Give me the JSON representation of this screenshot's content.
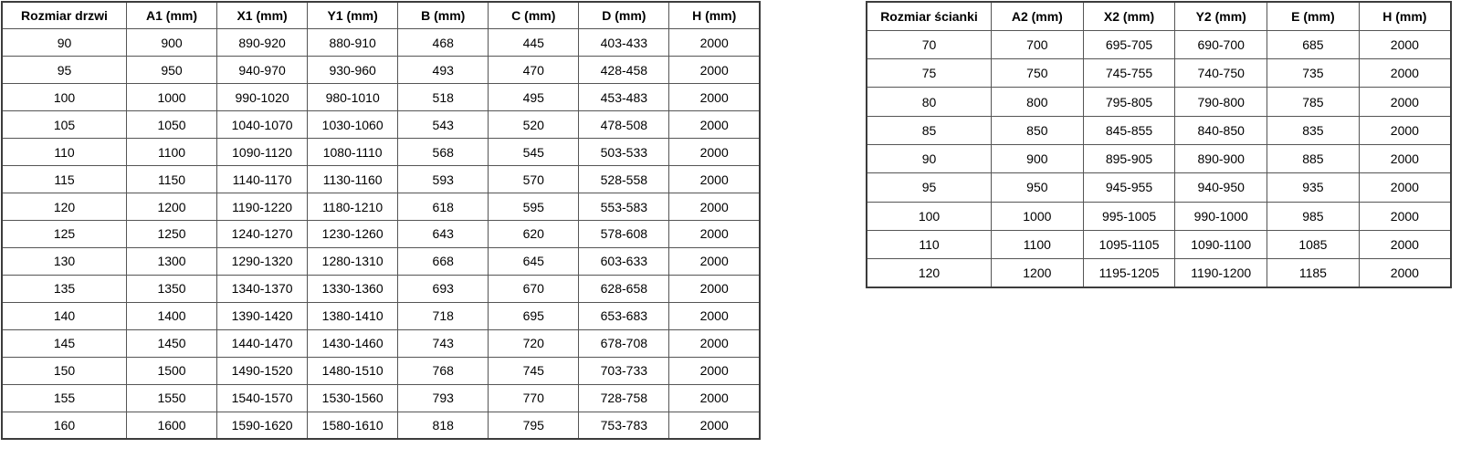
{
  "tables": {
    "doors": {
      "headers": [
        "Rozmiar drzwi",
        "A1 (mm)",
        "X1 (mm)",
        "Y1 (mm)",
        "B (mm)",
        "C (mm)",
        "D (mm)",
        "H (mm)"
      ],
      "rows": [
        [
          "90",
          "900",
          "890-920",
          "880-910",
          "468",
          "445",
          "403-433",
          "2000"
        ],
        [
          "95",
          "950",
          "940-970",
          "930-960",
          "493",
          "470",
          "428-458",
          "2000"
        ],
        [
          "100",
          "1000",
          "990-1020",
          "980-1010",
          "518",
          "495",
          "453-483",
          "2000"
        ],
        [
          "105",
          "1050",
          "1040-1070",
          "1030-1060",
          "543",
          "520",
          "478-508",
          "2000"
        ],
        [
          "110",
          "1100",
          "1090-1120",
          "1080-1110",
          "568",
          "545",
          "503-533",
          "2000"
        ],
        [
          "115",
          "1150",
          "1140-1170",
          "1130-1160",
          "593",
          "570",
          "528-558",
          "2000"
        ],
        [
          "120",
          "1200",
          "1190-1220",
          "1180-1210",
          "618",
          "595",
          "553-583",
          "2000"
        ],
        [
          "125",
          "1250",
          "1240-1270",
          "1230-1260",
          "643",
          "620",
          "578-608",
          "2000"
        ],
        [
          "130",
          "1300",
          "1290-1320",
          "1280-1310",
          "668",
          "645",
          "603-633",
          "2000"
        ],
        [
          "135",
          "1350",
          "1340-1370",
          "1330-1360",
          "693",
          "670",
          "628-658",
          "2000"
        ],
        [
          "140",
          "1400",
          "1390-1420",
          "1380-1410",
          "718",
          "695",
          "653-683",
          "2000"
        ],
        [
          "145",
          "1450",
          "1440-1470",
          "1430-1460",
          "743",
          "720",
          "678-708",
          "2000"
        ],
        [
          "150",
          "1500",
          "1490-1520",
          "1480-1510",
          "768",
          "745",
          "703-733",
          "2000"
        ],
        [
          "155",
          "1550",
          "1540-1570",
          "1530-1560",
          "793",
          "770",
          "728-758",
          "2000"
        ],
        [
          "160",
          "1600",
          "1590-1620",
          "1580-1610",
          "818",
          "795",
          "753-783",
          "2000"
        ]
      ]
    },
    "walls": {
      "headers": [
        "Rozmiar ścianki",
        "A2 (mm)",
        "X2 (mm)",
        "Y2 (mm)",
        "E (mm)",
        "H (mm)"
      ],
      "rows": [
        [
          "70",
          "700",
          "695-705",
          "690-700",
          "685",
          "2000"
        ],
        [
          "75",
          "750",
          "745-755",
          "740-750",
          "735",
          "2000"
        ],
        [
          "80",
          "800",
          "795-805",
          "790-800",
          "785",
          "2000"
        ],
        [
          "85",
          "850",
          "845-855",
          "840-850",
          "835",
          "2000"
        ],
        [
          "90",
          "900",
          "895-905",
          "890-900",
          "885",
          "2000"
        ],
        [
          "95",
          "950",
          "945-955",
          "940-950",
          "935",
          "2000"
        ],
        [
          "100",
          "1000",
          "995-1005",
          "990-1000",
          "985",
          "2000"
        ],
        [
          "110",
          "1100",
          "1095-1105",
          "1090-1100",
          "1085",
          "2000"
        ],
        [
          "120",
          "1200",
          "1195-1205",
          "1190-1200",
          "1185",
          "2000"
        ]
      ]
    },
    "colors": {
      "inner_border": "#555555",
      "outer_border": "#3c3c3c",
      "text": "#000000",
      "background": "#ffffff"
    }
  }
}
